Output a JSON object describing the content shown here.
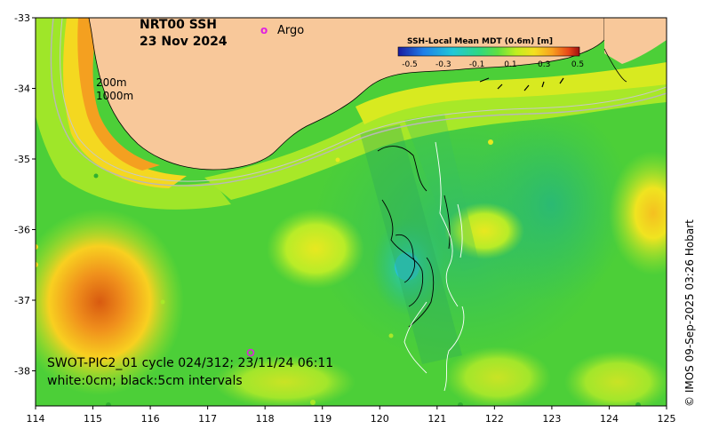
{
  "map": {
    "title_product": "NRT00 SSH",
    "title_date": "23 Nov 2024",
    "legend_argo": "Argo",
    "legend_argo_symbol": "o",
    "isobath_200": "200m",
    "isobath_1000": "1000m",
    "caption_line1": "SWOT-PIC2_01 cycle 024/312; 23/11/24 06:11",
    "caption_line2": "white:0cm; black:5cm intervals",
    "credit": "© IMOS 09-Sep-2025 03:26 Hobart",
    "lon_ticks": [
      "114",
      "115",
      "116",
      "117",
      "118",
      "119",
      "120",
      "121",
      "122",
      "123",
      "124",
      "125"
    ],
    "lat_ticks": [
      "-33",
      "-34",
      "-35",
      "-36",
      "-37",
      "-38"
    ],
    "colorbar": {
      "title": "SSH-Local Mean MDT (0.6m) [m]",
      "tick_labels": [
        "-0.5",
        "-0.3",
        "-0.1",
        "0.1",
        "0.3",
        "0.5"
      ],
      "colors": [
        "#1a1aa0",
        "#1f7fe8",
        "#20c8d8",
        "#30d880",
        "#60e040",
        "#c0ee20",
        "#f4e020",
        "#f8a020",
        "#e84818",
        "#a01010"
      ]
    },
    "colors": {
      "land": "#f8c89a",
      "ocean_base": "#4ccf38",
      "argo": "#e020e0"
    }
  }
}
